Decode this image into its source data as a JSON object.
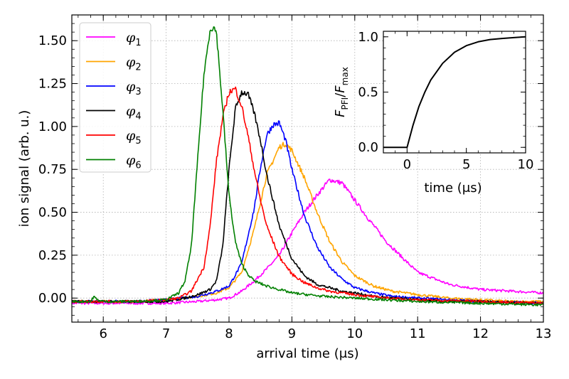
{
  "chart_data": [
    {
      "type": "line",
      "xlabel": "arrival time (μs)",
      "ylabel": "ion signal (arb. u.)",
      "xlim": [
        5.5,
        13
      ],
      "ylim": [
        -0.14,
        1.65
      ],
      "xticks": [
        6,
        7,
        8,
        9,
        10,
        11,
        12,
        13
      ],
      "xtick_labels": [
        "6",
        "7",
        "8",
        "9",
        "10",
        "11",
        "12",
        "13"
      ],
      "yticks": [
        0.0,
        0.25,
        0.5,
        0.75,
        1.0,
        1.25,
        1.5
      ],
      "ytick_labels": [
        "0.00",
        "0.25",
        "0.50",
        "0.75",
        "1.00",
        "1.25",
        "1.50"
      ],
      "grid": true,
      "legend_position": "top-left",
      "series": [
        {
          "name": "φ",
          "sub": "1",
          "color": "#ff00ff",
          "x": [
            5.5,
            6,
            6.5,
            7,
            7.5,
            7.8,
            8,
            8.2,
            8.4,
            8.6,
            8.8,
            9,
            9.2,
            9.4,
            9.6,
            9.8,
            10,
            10.2,
            10.5,
            10.8,
            11,
            11.5,
            12,
            12.5,
            13
          ],
          "y": [
            -0.03,
            -0.03,
            -0.03,
            -0.03,
            -0.02,
            -0.01,
            0.0,
            0.04,
            0.1,
            0.17,
            0.25,
            0.38,
            0.5,
            0.6,
            0.69,
            0.67,
            0.57,
            0.47,
            0.33,
            0.22,
            0.15,
            0.08,
            0.05,
            0.04,
            0.03
          ]
        },
        {
          "name": "φ",
          "sub": "2",
          "color": "#ffa500",
          "x": [
            5.5,
            6,
            6.5,
            7,
            7.5,
            7.8,
            8,
            8.2,
            8.4,
            8.6,
            8.8,
            8.9,
            9,
            9.2,
            9.4,
            9.6,
            9.8,
            10,
            10.3,
            10.6,
            11,
            11.5,
            12,
            12.5,
            13
          ],
          "y": [
            -0.02,
            -0.02,
            -0.02,
            -0.01,
            0.01,
            0.03,
            0.06,
            0.15,
            0.4,
            0.72,
            0.88,
            0.9,
            0.86,
            0.7,
            0.5,
            0.33,
            0.21,
            0.13,
            0.07,
            0.04,
            0.02,
            0.0,
            -0.01,
            -0.02,
            -0.02
          ]
        },
        {
          "name": "φ",
          "sub": "3",
          "color": "#0000ff",
          "x": [
            5.5,
            6,
            6.5,
            7,
            7.5,
            7.8,
            8,
            8.2,
            8.4,
            8.5,
            8.6,
            8.7,
            8.8,
            8.9,
            9,
            9.2,
            9.4,
            9.6,
            9.8,
            10,
            10.3,
            10.6,
            11,
            11.5,
            12,
            13
          ],
          "y": [
            -0.02,
            -0.02,
            -0.02,
            -0.01,
            0.01,
            0.04,
            0.07,
            0.2,
            0.52,
            0.76,
            0.95,
            1.01,
            1.02,
            0.92,
            0.75,
            0.48,
            0.3,
            0.18,
            0.11,
            0.06,
            0.03,
            0.01,
            0.0,
            -0.01,
            -0.02,
            -0.03
          ]
        },
        {
          "name": "φ",
          "sub": "4",
          "color": "#000000",
          "x": [
            5.5,
            6,
            6.5,
            7,
            7.3,
            7.5,
            7.7,
            7.8,
            7.9,
            8,
            8.1,
            8.2,
            8.3,
            8.4,
            8.5,
            8.6,
            8.8,
            9,
            9.2,
            9.4,
            9.6,
            9.8,
            10,
            10.3,
            10.6,
            11,
            11.5,
            12,
            13
          ],
          "y": [
            -0.02,
            -0.02,
            -0.02,
            -0.02,
            0.0,
            0.02,
            0.05,
            0.1,
            0.3,
            0.75,
            1.1,
            1.2,
            1.19,
            1.08,
            0.92,
            0.72,
            0.42,
            0.23,
            0.13,
            0.08,
            0.06,
            0.04,
            0.03,
            0.01,
            0.0,
            -0.01,
            -0.02,
            -0.02,
            -0.03
          ]
        },
        {
          "name": "φ",
          "sub": "5",
          "color": "#ff0000",
          "x": [
            5.5,
            6,
            6.5,
            7,
            7.2,
            7.4,
            7.6,
            7.7,
            7.8,
            7.9,
            8,
            8.1,
            8.2,
            8.3,
            8.4,
            8.5,
            8.6,
            8.8,
            9,
            9.2,
            9.4,
            9.6,
            9.8,
            10,
            10.5,
            11,
            12,
            13
          ],
          "y": [
            -0.02,
            -0.02,
            -0.02,
            -0.01,
            0.0,
            0.04,
            0.18,
            0.42,
            0.8,
            1.05,
            1.2,
            1.22,
            1.12,
            0.95,
            0.75,
            0.57,
            0.42,
            0.24,
            0.14,
            0.09,
            0.06,
            0.04,
            0.03,
            0.02,
            0.0,
            -0.01,
            -0.02,
            -0.03
          ]
        },
        {
          "name": "φ",
          "sub": "6",
          "color": "#008000",
          "x": [
            5.5,
            5.8,
            5.85,
            5.9,
            6,
            6.5,
            7,
            7.2,
            7.3,
            7.4,
            7.5,
            7.6,
            7.7,
            7.75,
            7.8,
            7.9,
            8,
            8.1,
            8.2,
            8.3,
            8.4,
            8.6,
            8.8,
            9,
            9.5,
            10,
            11,
            12,
            13
          ],
          "y": [
            -0.02,
            -0.02,
            0.01,
            -0.01,
            -0.02,
            -0.02,
            -0.01,
            0.03,
            0.1,
            0.3,
            0.8,
            1.3,
            1.57,
            1.58,
            1.55,
            1.1,
            0.6,
            0.33,
            0.2,
            0.14,
            0.1,
            0.07,
            0.05,
            0.03,
            0.01,
            0.0,
            -0.02,
            -0.03,
            -0.04
          ]
        }
      ]
    },
    {
      "type": "line",
      "xlabel": "time (μs)",
      "ylabel": "F_PFI/F_max",
      "ylabel_main1": "F",
      "ylabel_sub1": "PFI",
      "ylabel_slash": "/",
      "ylabel_main2": "F",
      "ylabel_sub2": "max",
      "xlim": [
        -2,
        10
      ],
      "ylim": [
        -0.05,
        1.05
      ],
      "xticks": [
        0,
        5,
        10
      ],
      "xtick_labels": [
        "0",
        "5",
        "10"
      ],
      "yticks": [
        0.0,
        0.5,
        1.0
      ],
      "ytick_labels": [
        "0.0",
        "0.5",
        "1.0"
      ],
      "grid": false,
      "series": [
        {
          "name": "F_PFI/F_max",
          "color": "#000000",
          "x": [
            -2,
            0,
            0.5,
            1,
            1.5,
            2,
            3,
            4,
            5,
            6,
            7,
            8,
            9,
            10
          ],
          "y": [
            0,
            0,
            0.2,
            0.37,
            0.5,
            0.61,
            0.76,
            0.86,
            0.92,
            0.955,
            0.975,
            0.985,
            0.993,
            1.0
          ]
        }
      ]
    }
  ]
}
